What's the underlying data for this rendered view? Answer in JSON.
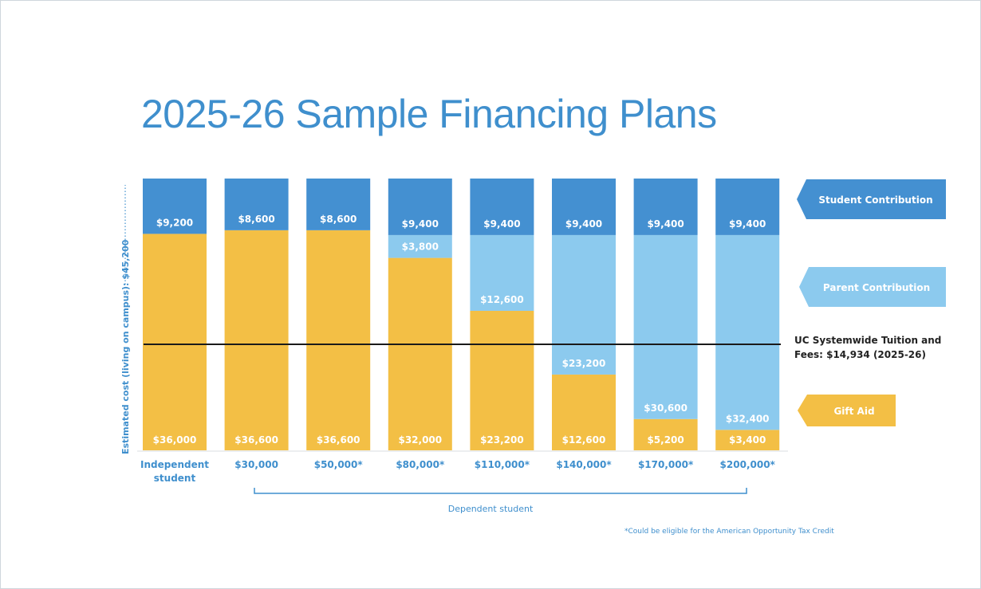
{
  "title": "2025-26 Sample Financing Plans",
  "colors": {
    "student": "#4490d1",
    "parent": "#8ccaee",
    "gift": "#f3bf45",
    "accent_text": "#3f8fcd"
  },
  "chart_data": {
    "type": "bar",
    "stacked": true,
    "title": "2025-26 Sample Financing Plans",
    "ylabel": "Estimated cost (living on campus): $45,200",
    "ylim": [
      0,
      45200
    ],
    "categories": [
      [
        "Independent",
        "student"
      ],
      [
        "$30,000"
      ],
      [
        "$50,000*"
      ],
      [
        "$80,000*"
      ],
      [
        "$110,000*"
      ],
      [
        "$140,000*"
      ],
      [
        "$170,000*"
      ],
      [
        "$200,000*"
      ]
    ],
    "series": [
      {
        "name": "Gift Aid",
        "values": [
          36000,
          36600,
          36600,
          32000,
          23200,
          12600,
          5200,
          3400
        ],
        "labels": [
          "$36,000",
          "$36,600",
          "$36,600",
          "$32,000",
          "$23,200",
          "$12,600",
          "$5,200",
          "$3,400"
        ]
      },
      {
        "name": "Parent Contribution",
        "values": [
          0,
          0,
          0,
          3800,
          12600,
          23200,
          30600,
          32400
        ],
        "labels": [
          "",
          "",
          "",
          "$3,800",
          "$12,600",
          "$23,200",
          "$30,600",
          "$32,400"
        ]
      },
      {
        "name": "Student Contribution",
        "values": [
          9200,
          8600,
          8600,
          9400,
          9400,
          9400,
          9400,
          9400
        ],
        "labels": [
          "$9,200",
          "$8,600",
          "$8,600",
          "$9,400",
          "$9,400",
          "$9,400",
          "$9,400",
          "$9,400"
        ]
      }
    ],
    "reference_line": {
      "label": [
        "UC Systemwide Tuition and",
        "Fees: $14,934 (2025-26)"
      ],
      "value": 14934
    },
    "group_label": "Dependent student",
    "footnote": "*Could be eligible for the American Opportunity Tax Credit"
  }
}
